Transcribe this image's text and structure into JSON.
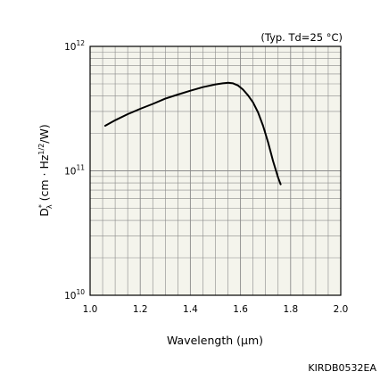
{
  "chart_data": {
    "type": "line",
    "title": "",
    "condition_note": "(Typ. Td=25 °C)",
    "xlabel": "Wavelength (μm)",
    "ylabel": {
      "base": "D",
      "sup": "*",
      "sub": "λ",
      "unit_open": " (cm · Hz",
      "unit_sup": "1/2",
      "unit_close": "/W)"
    },
    "x_scale": "linear",
    "y_scale": "log",
    "xlim": [
      1.0,
      2.0
    ],
    "ylim": [
      10000000000.0,
      1000000000000.0
    ],
    "x_ticks": [
      {
        "value": 1.0,
        "label": "1.0"
      },
      {
        "value": 1.2,
        "label": "1.2"
      },
      {
        "value": 1.4,
        "label": "1.4"
      },
      {
        "value": 1.6,
        "label": "1.6"
      },
      {
        "value": 1.8,
        "label": "1.8"
      },
      {
        "value": 2.0,
        "label": "2.0"
      }
    ],
    "y_ticks": [
      {
        "value": 10000000000.0,
        "base": "10",
        "exp": "10"
      },
      {
        "value": 100000000000.0,
        "base": "10",
        "exp": "11"
      },
      {
        "value": 1000000000000.0,
        "base": "10",
        "exp": "12"
      }
    ],
    "grid": true,
    "x_minor_step": 0.05,
    "line_color": "#000000",
    "plot_background": "#f4f4ec",
    "grid_color": "#8a8a8a",
    "series": [
      {
        "x": [
          1.06,
          1.1,
          1.15,
          1.2,
          1.25,
          1.3,
          1.35,
          1.4,
          1.45,
          1.5,
          1.53,
          1.55,
          1.57,
          1.59,
          1.61,
          1.63,
          1.65,
          1.67,
          1.69,
          1.71,
          1.73,
          1.75,
          1.76
        ],
        "y": [
          230000000000.0,
          255000000000.0,
          285000000000.0,
          315000000000.0,
          345000000000.0,
          380000000000.0,
          410000000000.0,
          440000000000.0,
          470000000000.0,
          495000000000.0,
          505000000000.0,
          510000000000.0,
          505000000000.0,
          485000000000.0,
          450000000000.0,
          405000000000.0,
          355000000000.0,
          295000000000.0,
          230000000000.0,
          170000000000.0,
          120000000000.0,
          88000000000.0,
          78000000000.0
        ]
      }
    ]
  },
  "footer": {
    "code": "KIRDB0532EA"
  }
}
